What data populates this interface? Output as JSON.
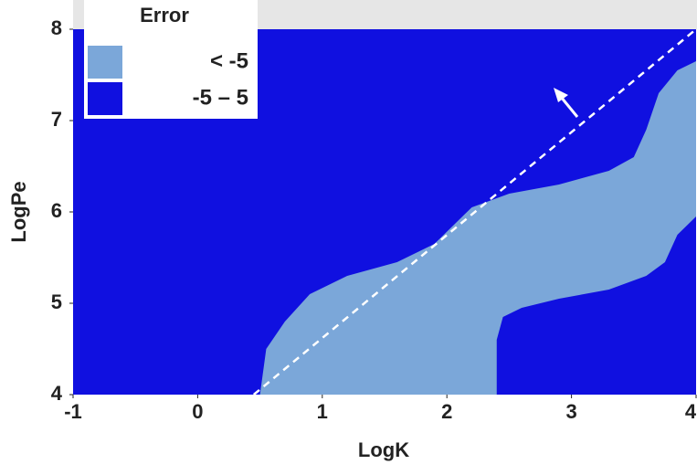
{
  "chart_data": {
    "type": "region",
    "x_label": "LogK",
    "y_label": "LogPe",
    "xlim": [
      -1,
      4
    ],
    "ylim": [
      4,
      8
    ],
    "xticks": [
      -1,
      0,
      1,
      2,
      3,
      4
    ],
    "yticks": [
      4,
      5,
      6,
      7,
      8
    ],
    "legend_title": "Error",
    "series": [
      {
        "name": "< -5",
        "color": "#7ba7d9",
        "x": [
          0.5,
          0.55,
          0.7,
          0.9,
          1.2,
          1.6,
          1.9,
          2.2,
          2.5,
          2.9,
          3.3,
          3.5,
          3.6,
          3.7,
          3.85,
          4,
          4,
          3.85,
          3.75,
          3.6,
          3.3,
          2.9,
          2.6,
          2.45,
          2.4,
          2.4
        ],
        "y": [
          4,
          4.5,
          4.8,
          5.1,
          5.3,
          5.45,
          5.65,
          6.05,
          6.2,
          6.3,
          6.45,
          6.6,
          6.9,
          7.3,
          7.55,
          7.65,
          5.95,
          5.75,
          5.45,
          5.3,
          5.15,
          5.05,
          4.95,
          4.85,
          4.6,
          4
        ]
      },
      {
        "name": "-5 – 5",
        "color": "#1010e0"
      }
    ],
    "reference_line": {
      "x": [
        0.45,
        4
      ],
      "y": [
        4,
        8
      ],
      "color": "#ffffff"
    }
  }
}
